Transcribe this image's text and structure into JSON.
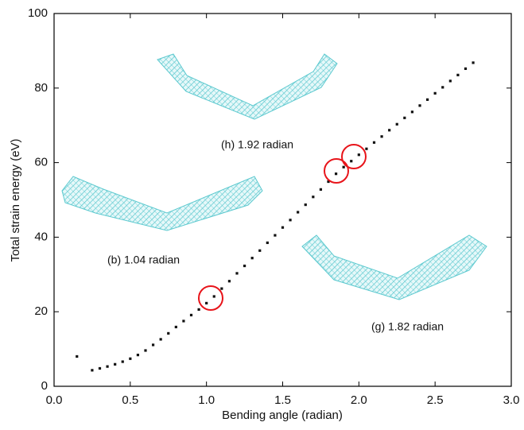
{
  "chart_data": {
    "type": "scatter",
    "x_label": "Bending angle (radian)",
    "y_label": "Total strain energy (eV)",
    "xlim": [
      0,
      3
    ],
    "ylim": [
      0,
      100
    ],
    "xticks": [
      {
        "value": 0,
        "label": "0.0"
      },
      0.5,
      {
        "value": 1,
        "label": "1.0"
      },
      1.5,
      {
        "value": 2,
        "label": "2.0"
      },
      2.5,
      {
        "value": 3,
        "label": "3.0"
      }
    ],
    "yticks": [
      0,
      20,
      40,
      60,
      80,
      100
    ],
    "annotations": [
      "(h) 1.92 radian",
      "(b) 1.04 radian",
      "(g) 1.82 radian"
    ],
    "series": [
      {
        "color": "#111111",
        "x": [
          0.15,
          0.25,
          0.3,
          0.35,
          0.4,
          0.45,
          0.5,
          0.55,
          0.6,
          0.65,
          0.7,
          0.75,
          0.8,
          0.85,
          0.9,
          0.95,
          1.0,
          1.05,
          1.1,
          1.15,
          1.2,
          1.25,
          1.3,
          1.35,
          1.4,
          1.45,
          1.5,
          1.55,
          1.6,
          1.65,
          1.7,
          1.75,
          1.8,
          1.85,
          1.9,
          1.95,
          2.0,
          2.05,
          2.1,
          2.15,
          2.2,
          2.25,
          2.3,
          2.35,
          2.4,
          2.45,
          2.5,
          2.55,
          2.6,
          2.65,
          2.7,
          2.75
        ],
        "values": [
          8,
          4.3,
          4.8,
          5.3,
          5.9,
          6.6,
          7.4,
          8.4,
          9.6,
          11.1,
          12.6,
          14.2,
          15.9,
          17.5,
          19.1,
          20.6,
          22.3,
          24.1,
          26.2,
          28.2,
          30.3,
          32.3,
          34.4,
          36.4,
          38.5,
          40.5,
          42.6,
          44.6,
          46.7,
          48.7,
          50.8,
          52.8,
          54.9,
          57.0,
          58.8,
          60.4,
          62.1,
          63.7,
          65.4,
          67.0,
          68.7,
          70.3,
          72.0,
          73.6,
          75.3,
          76.9,
          78.6,
          80.2,
          81.9,
          83.5,
          85.2,
          86.8
        ]
      }
    ]
  }
}
